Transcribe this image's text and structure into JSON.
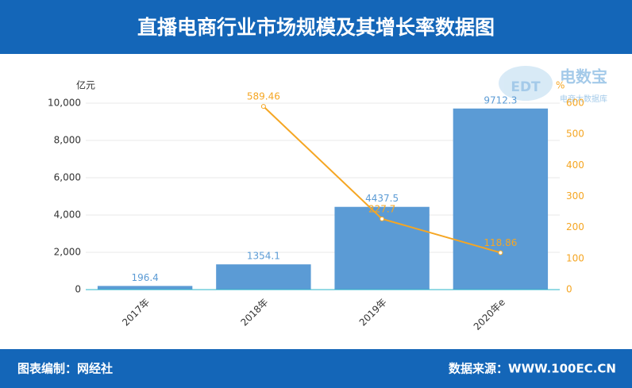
{
  "header": {
    "title": "直播电商行业市场规模及其增长率数据图"
  },
  "chart_data": {
    "type": "bar",
    "y_label": "亿元",
    "y2_label": "%",
    "categories": [
      "2017年",
      "2018年",
      "2019年",
      "2020年e"
    ],
    "series": [
      {
        "type": "bar",
        "color": "#5b9bd5",
        "values": [
          196.4,
          1354.1,
          4437.5,
          9712.3
        ]
      },
      {
        "type": "line",
        "axis": "y2",
        "color": "#f5a623",
        "values": [
          null,
          589.46,
          227.7,
          118.86
        ]
      }
    ],
    "ylim": [
      0,
      10000
    ],
    "yticks": [
      0,
      {
        "value": 2000,
        "label": "2,000"
      },
      {
        "value": 4000,
        "label": "4,000"
      },
      {
        "value": 6000,
        "label": "6,000"
      },
      {
        "value": 8000,
        "label": "8,000"
      },
      {
        "value": 10000,
        "label": "10,000"
      }
    ],
    "y2lim": [
      0,
      600
    ],
    "y2ticks": [
      0,
      100,
      200,
      300,
      400,
      500,
      600
    ],
    "grid": true
  },
  "watermark": {
    "logo": "EDT",
    "name": "电数宝",
    "tagline": "电商大数据库"
  },
  "footer": {
    "left": "图表编制：网经社",
    "right": "数据来源：WWW.100EC.CN"
  }
}
